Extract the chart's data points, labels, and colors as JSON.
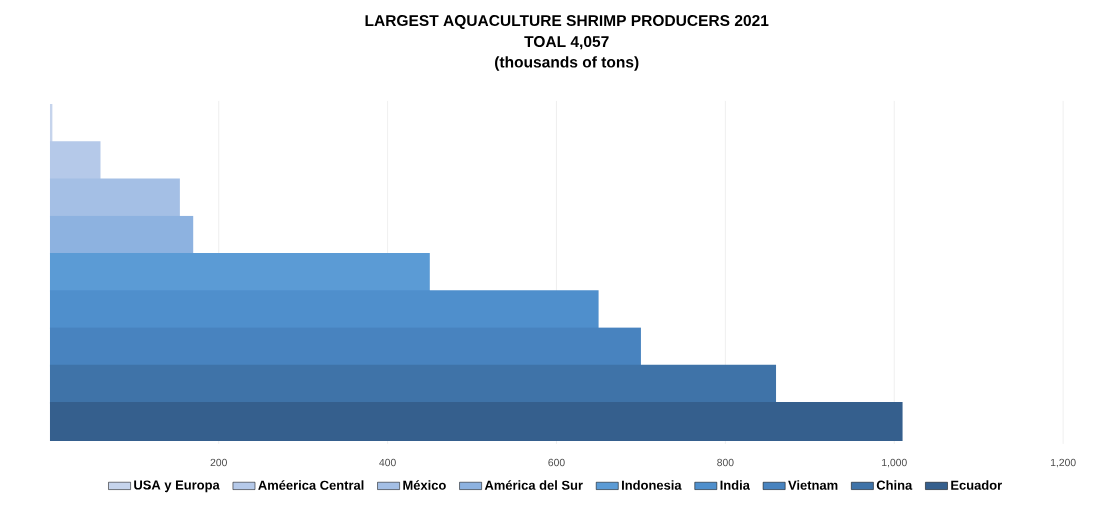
{
  "chart_data": {
    "type": "bar",
    "orientation": "horizontal",
    "title": "LARGEST AQUACULTURE  SHRIMP PRODUCERS  2021",
    "subtitle": "TOAL 4,057",
    "annotations": [
      "(thousands of tons)"
    ],
    "categories": [
      null,
      null,
      null,
      null,
      null,
      null,
      null,
      null,
      null
    ],
    "series": [
      {
        "name": "USA y Europa",
        "color": "#c6d4ec",
        "values": [
          3,
          null,
          null,
          null,
          null,
          null,
          null,
          null,
          null
        ]
      },
      {
        "name": "Améerica Central",
        "color": "#b5c9e9",
        "values": [
          null,
          60,
          null,
          null,
          null,
          null,
          null,
          null,
          null
        ]
      },
      {
        "name": "México",
        "color": "#a4bfe5",
        "values": [
          null,
          null,
          154,
          null,
          null,
          null,
          null,
          null,
          null
        ]
      },
      {
        "name": "América del Sur",
        "color": "#8db2e0",
        "values": [
          null,
          null,
          null,
          170,
          null,
          null,
          null,
          null,
          null
        ]
      },
      {
        "name": "Indonesia",
        "color": "#5b9bd5",
        "values": [
          null,
          null,
          null,
          null,
          450,
          null,
          null,
          null,
          null
        ]
      },
      {
        "name": "India",
        "color": "#4f8fcc",
        "values": [
          null,
          null,
          null,
          null,
          null,
          650,
          null,
          null,
          null
        ]
      },
      {
        "name": "Vietnam",
        "color": "#4883bf",
        "values": [
          null,
          null,
          null,
          null,
          null,
          null,
          700,
          null,
          null
        ]
      },
      {
        "name": "China",
        "color": "#3f73a8",
        "values": [
          null,
          null,
          null,
          null,
          null,
          null,
          null,
          860,
          null
        ]
      },
      {
        "name": "Ecuador",
        "color": "#355f8d",
        "values": [
          null,
          null,
          null,
          null,
          null,
          null,
          null,
          null,
          1010
        ]
      }
    ],
    "xlim": [
      0,
      1200
    ],
    "xticks": [
      200,
      400,
      600,
      800,
      {
        "value": 1000,
        "label": "1,000"
      },
      {
        "value": 1200,
        "label": "1,200"
      }
    ],
    "grid": "x",
    "legend": "bottom"
  }
}
